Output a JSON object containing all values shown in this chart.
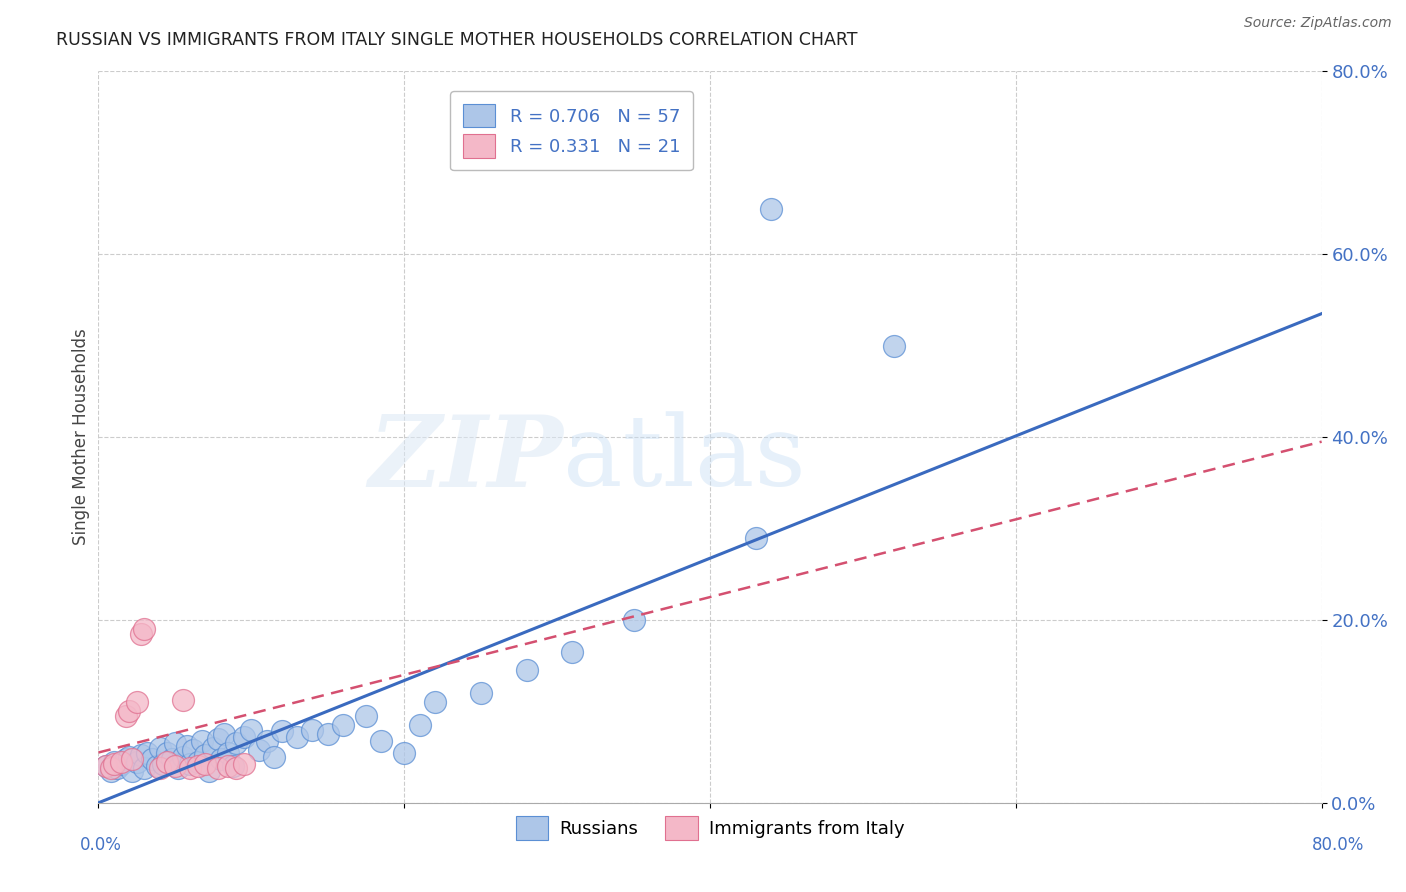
{
  "title": "RUSSIAN VS IMMIGRANTS FROM ITALY SINGLE MOTHER HOUSEHOLDS CORRELATION CHART",
  "source": "Source: ZipAtlas.com",
  "ylabel": "Single Mother Households",
  "ytick_labels": [
    "0.0%",
    "20.0%",
    "40.0%",
    "60.0%",
    "80.0%"
  ],
  "ytick_values": [
    0.0,
    0.2,
    0.4,
    0.6,
    0.8
  ],
  "xtick_labels": [
    "0.0%",
    "80.0%"
  ],
  "xtick_values": [
    0.0,
    0.8
  ],
  "xlim": [
    0.0,
    0.8
  ],
  "ylim": [
    0.0,
    0.8
  ],
  "legend_r1_val": "0.706",
  "legend_n1_val": "57",
  "legend_r2_val": "0.331",
  "legend_n2_val": "21",
  "blue_color": "#adc6e8",
  "blue_edge_color": "#5b8fd4",
  "blue_line_color": "#3a6abf",
  "pink_color": "#f4b8c8",
  "pink_edge_color": "#e07090",
  "pink_line_color": "#d45070",
  "watermark_zip": "ZIP",
  "watermark_atlas": "atlas",
  "tick_color": "#4472c4",
  "grid_color": "#cccccc",
  "blue_scatter_x": [
    0.005,
    0.008,
    0.01,
    0.012,
    0.015,
    0.018,
    0.02,
    0.022,
    0.025,
    0.028,
    0.03,
    0.032,
    0.035,
    0.038,
    0.04,
    0.042,
    0.045,
    0.048,
    0.05,
    0.052,
    0.055,
    0.058,
    0.06,
    0.062,
    0.065,
    0.068,
    0.07,
    0.072,
    0.075,
    0.078,
    0.08,
    0.082,
    0.085,
    0.088,
    0.09,
    0.095,
    0.1,
    0.105,
    0.11,
    0.115,
    0.12,
    0.13,
    0.14,
    0.15,
    0.16,
    0.175,
    0.185,
    0.2,
    0.21,
    0.22,
    0.25,
    0.28,
    0.31,
    0.35,
    0.43,
    0.52,
    0.44
  ],
  "blue_scatter_y": [
    0.04,
    0.035,
    0.045,
    0.038,
    0.042,
    0.048,
    0.05,
    0.035,
    0.045,
    0.052,
    0.038,
    0.055,
    0.048,
    0.04,
    0.06,
    0.042,
    0.055,
    0.048,
    0.065,
    0.038,
    0.05,
    0.062,
    0.042,
    0.058,
    0.045,
    0.068,
    0.052,
    0.035,
    0.06,
    0.07,
    0.048,
    0.075,
    0.055,
    0.04,
    0.065,
    0.072,
    0.08,
    0.058,
    0.068,
    0.05,
    0.078,
    0.072,
    0.08,
    0.075,
    0.085,
    0.095,
    0.068,
    0.055,
    0.085,
    0.11,
    0.12,
    0.145,
    0.165,
    0.2,
    0.29,
    0.5,
    0.65
  ],
  "pink_scatter_x": [
    0.005,
    0.008,
    0.01,
    0.015,
    0.018,
    0.02,
    0.022,
    0.025,
    0.028,
    0.03,
    0.04,
    0.045,
    0.05,
    0.055,
    0.06,
    0.065,
    0.07,
    0.078,
    0.085,
    0.09,
    0.095
  ],
  "pink_scatter_y": [
    0.04,
    0.038,
    0.042,
    0.045,
    0.095,
    0.1,
    0.048,
    0.11,
    0.185,
    0.19,
    0.038,
    0.045,
    0.04,
    0.112,
    0.038,
    0.04,
    0.042,
    0.038,
    0.04,
    0.038,
    0.042
  ],
  "blue_line_x0": 0.0,
  "blue_line_y0": 0.0,
  "blue_line_x1": 0.8,
  "blue_line_y1": 0.535,
  "pink_line_x0": 0.0,
  "pink_line_y0": 0.055,
  "pink_line_x1": 0.8,
  "pink_line_y1": 0.395
}
